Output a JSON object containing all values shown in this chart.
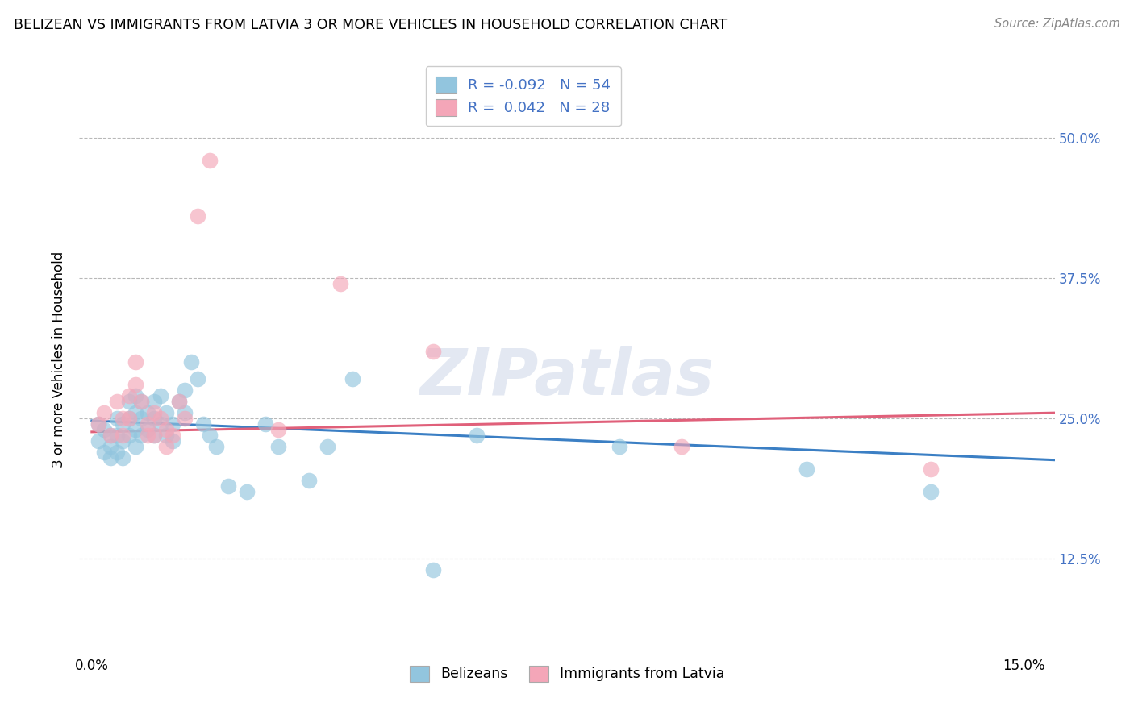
{
  "title": "BELIZEAN VS IMMIGRANTS FROM LATVIA 3 OR MORE VEHICLES IN HOUSEHOLD CORRELATION CHART",
  "source": "Source: ZipAtlas.com",
  "ylabel": "3 or more Vehicles in Household",
  "xlim": [
    -0.002,
    0.155
  ],
  "ylim": [
    0.04,
    0.565
  ],
  "xtick_positions": [
    0.0,
    0.05,
    0.1,
    0.15
  ],
  "xticklabels": [
    "0.0%",
    "",
    "",
    "15.0%"
  ],
  "ytick_positions": [
    0.125,
    0.25,
    0.375,
    0.5
  ],
  "yticklabels": [
    "12.5%",
    "25.0%",
    "37.5%",
    "50.0%"
  ],
  "blue_color": "#92c5de",
  "pink_color": "#f4a6b8",
  "blue_line_color": "#3b7fc4",
  "pink_line_color": "#e0607a",
  "watermark": "ZIPatlas",
  "R_blue": -0.092,
  "N_blue": 54,
  "R_pink": 0.042,
  "N_pink": 28,
  "belizean_x": [
    0.001,
    0.001,
    0.002,
    0.002,
    0.003,
    0.003,
    0.003,
    0.004,
    0.004,
    0.004,
    0.005,
    0.005,
    0.005,
    0.006,
    0.006,
    0.006,
    0.007,
    0.007,
    0.007,
    0.007,
    0.008,
    0.008,
    0.008,
    0.009,
    0.009,
    0.01,
    0.01,
    0.01,
    0.011,
    0.011,
    0.012,
    0.012,
    0.013,
    0.013,
    0.014,
    0.015,
    0.015,
    0.016,
    0.017,
    0.018,
    0.019,
    0.02,
    0.022,
    0.025,
    0.028,
    0.03,
    0.035,
    0.038,
    0.042,
    0.055,
    0.062,
    0.085,
    0.115,
    0.135
  ],
  "belizean_y": [
    0.245,
    0.23,
    0.24,
    0.22,
    0.235,
    0.225,
    0.215,
    0.25,
    0.235,
    0.22,
    0.245,
    0.23,
    0.215,
    0.265,
    0.25,
    0.235,
    0.27,
    0.255,
    0.24,
    0.225,
    0.265,
    0.25,
    0.235,
    0.255,
    0.24,
    0.265,
    0.25,
    0.235,
    0.27,
    0.245,
    0.255,
    0.235,
    0.245,
    0.23,
    0.265,
    0.275,
    0.255,
    0.3,
    0.285,
    0.245,
    0.235,
    0.225,
    0.19,
    0.185,
    0.245,
    0.225,
    0.195,
    0.225,
    0.285,
    0.115,
    0.235,
    0.225,
    0.205,
    0.185
  ],
  "latvia_x": [
    0.001,
    0.002,
    0.003,
    0.004,
    0.005,
    0.005,
    0.006,
    0.006,
    0.007,
    0.007,
    0.008,
    0.009,
    0.009,
    0.01,
    0.01,
    0.011,
    0.012,
    0.012,
    0.013,
    0.014,
    0.015,
    0.017,
    0.019,
    0.03,
    0.04,
    0.055,
    0.095,
    0.135
  ],
  "latvia_y": [
    0.245,
    0.255,
    0.235,
    0.265,
    0.25,
    0.235,
    0.27,
    0.25,
    0.3,
    0.28,
    0.265,
    0.245,
    0.235,
    0.255,
    0.235,
    0.25,
    0.24,
    0.225,
    0.235,
    0.265,
    0.25,
    0.43,
    0.48,
    0.24,
    0.37,
    0.31,
    0.225,
    0.205
  ],
  "blue_line_x": [
    0.0,
    0.155
  ],
  "blue_line_y": [
    0.248,
    0.213
  ],
  "pink_line_x": [
    0.0,
    0.155
  ],
  "pink_line_y": [
    0.238,
    0.255
  ]
}
